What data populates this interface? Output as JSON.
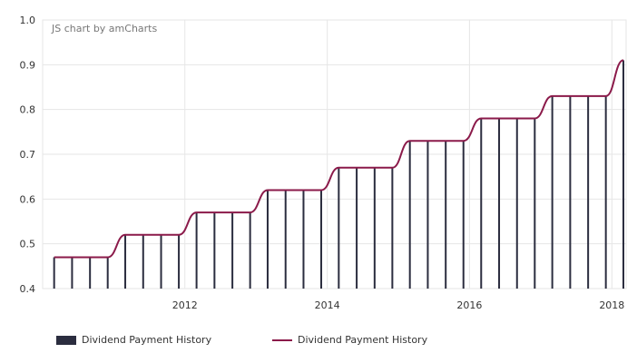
{
  "credit": "JS chart by amCharts",
  "chart_data": {
    "type": "bar",
    "title": "",
    "xlabel": "",
    "ylabel": "",
    "ylim": [
      0.4,
      1.0
    ],
    "yticks": [
      "0.4",
      "0.5",
      "0.6",
      "0.7",
      "0.8",
      "0.9",
      "1.0"
    ],
    "xticks": [
      {
        "label": "2012",
        "date": "2012-01-01"
      },
      {
        "label": "2014",
        "date": "2014-01-01"
      },
      {
        "label": "2016",
        "date": "2016-01-01"
      },
      {
        "label": "2018",
        "date": "2018-01-01"
      }
    ],
    "grid": true,
    "legend_position": "bottom",
    "colors": {
      "bars": "#2b2d3f",
      "line": "#8b1a4a"
    },
    "series": [
      {
        "name": "Dividend Payment History",
        "type": "column",
        "dates": [
          "2010-03-01",
          "2010-06-01",
          "2010-09-01",
          "2010-12-01",
          "2011-03-01",
          "2011-06-01",
          "2011-09-01",
          "2011-12-01",
          "2012-03-01",
          "2012-06-01",
          "2012-09-01",
          "2012-12-01",
          "2013-03-01",
          "2013-06-01",
          "2013-09-01",
          "2013-12-01",
          "2014-03-01",
          "2014-06-01",
          "2014-09-01",
          "2014-12-01",
          "2015-03-01",
          "2015-06-01",
          "2015-09-01",
          "2015-12-01",
          "2016-03-01",
          "2016-06-01",
          "2016-09-01",
          "2016-12-01",
          "2017-03-01",
          "2017-06-01",
          "2017-09-01",
          "2017-12-01",
          "2018-03-01"
        ],
        "values": [
          0.47,
          0.47,
          0.47,
          0.47,
          0.52,
          0.52,
          0.52,
          0.52,
          0.57,
          0.57,
          0.57,
          0.57,
          0.62,
          0.62,
          0.62,
          0.62,
          0.67,
          0.67,
          0.67,
          0.67,
          0.73,
          0.73,
          0.73,
          0.73,
          0.78,
          0.78,
          0.78,
          0.78,
          0.83,
          0.83,
          0.83,
          0.83,
          0.91
        ]
      },
      {
        "name": "Dividend Payment History",
        "type": "line",
        "dates": [
          "2010-03-01",
          "2010-06-01",
          "2010-09-01",
          "2010-12-01",
          "2011-03-01",
          "2011-06-01",
          "2011-09-01",
          "2011-12-01",
          "2012-03-01",
          "2012-06-01",
          "2012-09-01",
          "2012-12-01",
          "2013-03-01",
          "2013-06-01",
          "2013-09-01",
          "2013-12-01",
          "2014-03-01",
          "2014-06-01",
          "2014-09-01",
          "2014-12-01",
          "2015-03-01",
          "2015-06-01",
          "2015-09-01",
          "2015-12-01",
          "2016-03-01",
          "2016-06-01",
          "2016-09-01",
          "2016-12-01",
          "2017-03-01",
          "2017-06-01",
          "2017-09-01",
          "2017-12-01",
          "2018-03-01"
        ],
        "values": [
          0.47,
          0.47,
          0.47,
          0.47,
          0.52,
          0.52,
          0.52,
          0.52,
          0.57,
          0.57,
          0.57,
          0.57,
          0.62,
          0.62,
          0.62,
          0.62,
          0.67,
          0.67,
          0.67,
          0.67,
          0.73,
          0.73,
          0.73,
          0.73,
          0.78,
          0.78,
          0.78,
          0.78,
          0.83,
          0.83,
          0.83,
          0.83,
          0.91
        ]
      }
    ]
  }
}
